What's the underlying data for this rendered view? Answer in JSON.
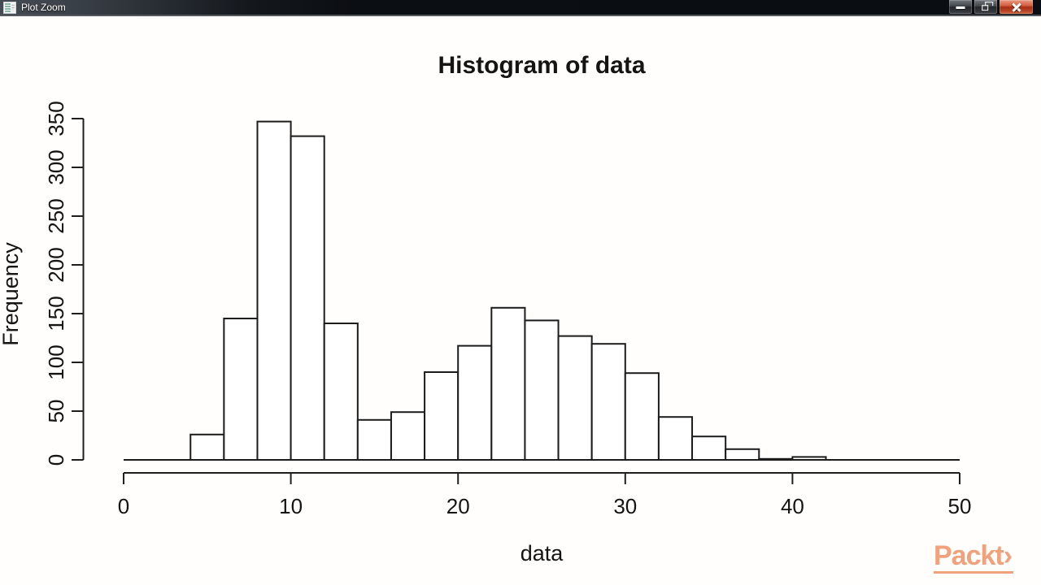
{
  "window": {
    "title": "Plot Zoom",
    "controls": [
      {
        "name": "minimize"
      },
      {
        "name": "restore"
      },
      {
        "name": "close"
      }
    ]
  },
  "chart_data": {
    "type": "bar",
    "subtype": "histogram",
    "title": "Histogram of data",
    "xlabel": "data",
    "ylabel": "Frequency",
    "xlim": [
      0,
      50
    ],
    "ylim": [
      0,
      350
    ],
    "x_ticks": [
      0,
      10,
      20,
      30,
      40,
      50
    ],
    "y_ticks": [
      0,
      50,
      100,
      150,
      200,
      250,
      300,
      350
    ],
    "bin_start": 0,
    "bin_width": 2,
    "counts": [
      0,
      0,
      26,
      145,
      347,
      332,
      140,
      41,
      49,
      90,
      117,
      156,
      143,
      127,
      119,
      89,
      44,
      24,
      11,
      1,
      3,
      0,
      0,
      0,
      0
    ],
    "bar_fill": "#ffffff",
    "bar_stroke": "#1c1c1c",
    "axis_color": "#1f1f1f",
    "text_color": "#141414",
    "grid": false,
    "legend": false
  },
  "branding": {
    "logo_text": "Packt",
    "logo_chevron": "›",
    "logo_color": "#f1a17b"
  }
}
